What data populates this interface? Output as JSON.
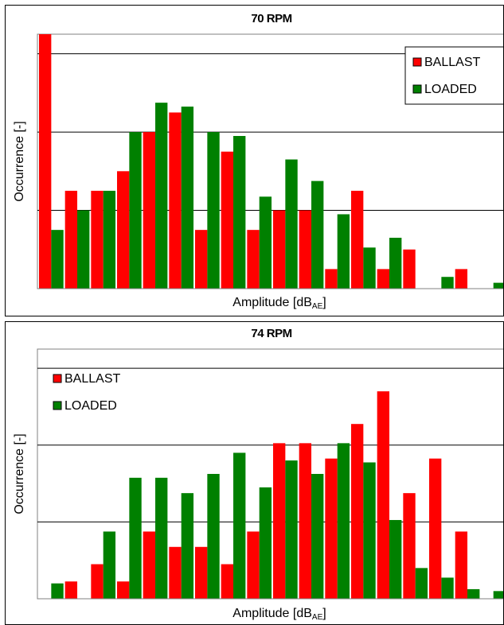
{
  "chart_data": [
    {
      "type": "bar",
      "title": "70 RPM",
      "xlabel": "Amplitude [dB",
      "xlabel_sub": "AE",
      "xlabel_close": "]",
      "ylabel": "Occurrence [-]",
      "ylim": [
        0,
        13
      ],
      "grid": "horizontal",
      "legend_position": "top-right",
      "legend_boxed": true,
      "colors": {
        "BALLAST": "#ff0000",
        "LOADED": "#008000"
      },
      "series": [
        {
          "name": "BALLAST",
          "values": [
            13,
            5,
            5,
            6,
            8,
            9,
            3,
            7,
            3,
            4,
            4,
            1,
            5,
            1,
            2,
            0,
            1,
            0
          ]
        },
        {
          "name": "LOADED",
          "values": [
            3,
            4,
            5,
            8,
            9.5,
            9.3,
            8,
            7.8,
            4.7,
            6.6,
            5.5,
            3.8,
            2.1,
            2.6,
            0,
            0.6,
            0,
            0.3
          ]
        }
      ]
    },
    {
      "type": "bar",
      "title": "74 RPM",
      "xlabel": "Amplitude [dB",
      "xlabel_sub": "AE",
      "xlabel_close": "]",
      "ylabel": "Occurrence [-]",
      "ylim": [
        0,
        13
      ],
      "grid": "horizontal",
      "legend_position": "top-left",
      "legend_boxed": false,
      "colors": {
        "BALLAST": "#ff0000",
        "LOADED": "#008000"
      },
      "series": [
        {
          "name": "BALLAST",
          "values": [
            0,
            0.9,
            1.8,
            0.9,
            3.5,
            2.7,
            2.7,
            1.8,
            3.5,
            8.1,
            8.1,
            7.3,
            9.1,
            10.8,
            5.5,
            7.3,
            3.5,
            0
          ]
        },
        {
          "name": "LOADED",
          "values": [
            0.8,
            0,
            3.5,
            6.3,
            6.3,
            5.5,
            6.5,
            7.6,
            5.8,
            7.2,
            6.5,
            8.1,
            7.1,
            4.1,
            1.6,
            1.1,
            0.5,
            0.4
          ]
        }
      ]
    }
  ]
}
